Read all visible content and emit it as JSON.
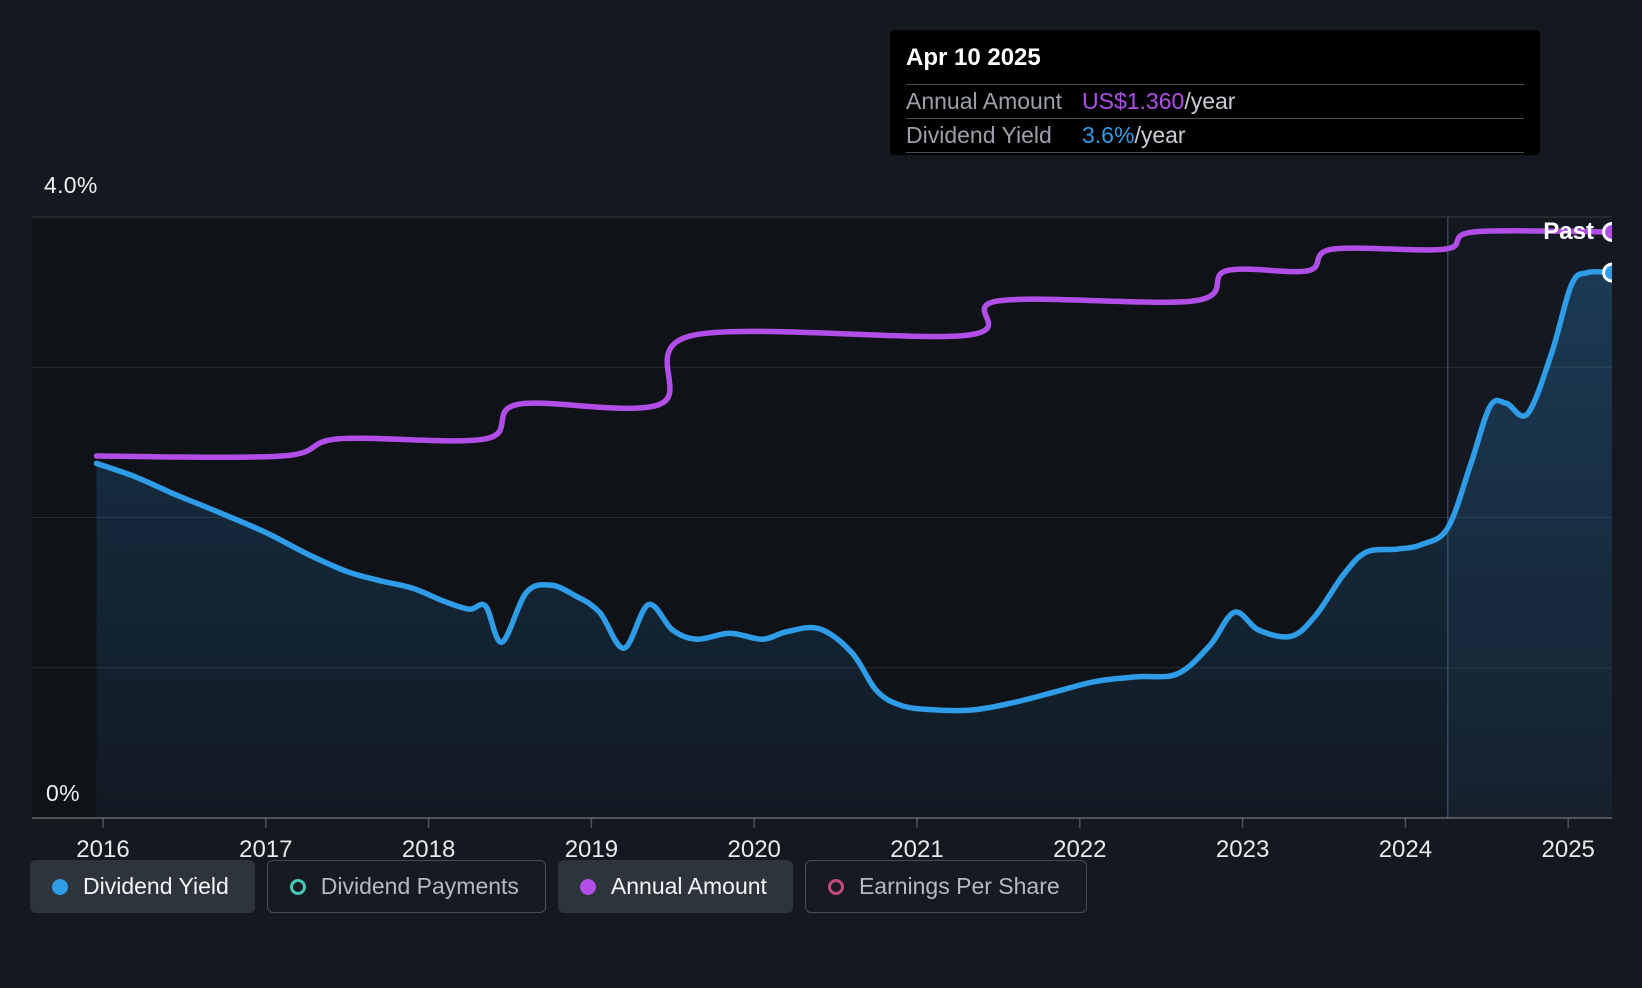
{
  "tooltip": {
    "date": "Apr 10 2025",
    "rows": [
      {
        "label": "Annual Amount",
        "value": "US$1.360",
        "suffix": "/year",
        "color_key": "purple"
      },
      {
        "label": "Dividend Yield",
        "value": "3.6%",
        "suffix": "/year",
        "color_key": "blue"
      }
    ]
  },
  "past_label": "Past",
  "y_axis": {
    "top_label": "4.0%",
    "bottom_label": "0%",
    "min": 0,
    "max": 4
  },
  "legend": {
    "items": [
      {
        "label": "Dividend Yield",
        "style": "filled",
        "marker": "filled-dot",
        "color_key": "blue"
      },
      {
        "label": "Dividend Payments",
        "style": "outline",
        "marker": "ring-dot",
        "color_key": "teal"
      },
      {
        "label": "Annual Amount",
        "style": "filled",
        "marker": "filled-dot",
        "color_key": "purple"
      },
      {
        "label": "Earnings Per Share",
        "style": "outline",
        "marker": "ring-dot",
        "color_key": "pink"
      }
    ]
  },
  "colors": {
    "blue": "#2f9ce8",
    "purple": "#b14ee8",
    "teal": "#45c8b5",
    "pink": "#c2487e",
    "area_fill_top": "rgba(43,130,200,0.30)",
    "area_fill_bottom": "rgba(43,130,200,0.07)",
    "page_bg": "#15181e",
    "plot_bg": "#0f1216",
    "gridline": "rgba(255,255,255,0.10)",
    "axis_line": "rgba(255,255,255,0.25)",
    "past_divider": "rgba(140,180,220,0.30)",
    "past_overlay": "rgba(100,160,220,0.06)"
  },
  "chart_data": {
    "type": "line",
    "title": "Dividend history and yield",
    "x_ticks": [
      2016,
      2017,
      2018,
      2019,
      2020,
      2021,
      2022,
      2023,
      2024,
      2025
    ],
    "y_axis_percent": {
      "min": 0,
      "max": 4,
      "gridlines_percent": [
        4,
        3,
        2,
        1,
        0
      ]
    },
    "past_region": {
      "start_year": 2024.26,
      "end_year": 2025.27,
      "label": "Past"
    },
    "legend_position": "bottom",
    "series": [
      {
        "name": "Dividend Yield",
        "unit": "%",
        "color_key": "blue",
        "end_marker": true,
        "area": true,
        "points": [
          [
            2015.96,
            2.36
          ],
          [
            2016.2,
            2.27
          ],
          [
            2016.45,
            2.15
          ],
          [
            2016.7,
            2.04
          ],
          [
            2017.0,
            1.9
          ],
          [
            2017.25,
            1.76
          ],
          [
            2017.5,
            1.64
          ],
          [
            2017.7,
            1.58
          ],
          [
            2017.9,
            1.53
          ],
          [
            2018.1,
            1.44
          ],
          [
            2018.25,
            1.39
          ],
          [
            2018.35,
            1.41
          ],
          [
            2018.45,
            1.17
          ],
          [
            2018.6,
            1.5
          ],
          [
            2018.75,
            1.55
          ],
          [
            2018.9,
            1.48
          ],
          [
            2019.05,
            1.37
          ],
          [
            2019.2,
            1.13
          ],
          [
            2019.35,
            1.42
          ],
          [
            2019.5,
            1.25
          ],
          [
            2019.65,
            1.19
          ],
          [
            2019.85,
            1.23
          ],
          [
            2020.05,
            1.19
          ],
          [
            2020.2,
            1.24
          ],
          [
            2020.4,
            1.26
          ],
          [
            2020.6,
            1.1
          ],
          [
            2020.75,
            0.85
          ],
          [
            2020.9,
            0.75
          ],
          [
            2021.1,
            0.72
          ],
          [
            2021.35,
            0.72
          ],
          [
            2021.6,
            0.77
          ],
          [
            2021.85,
            0.84
          ],
          [
            2022.1,
            0.91
          ],
          [
            2022.35,
            0.94
          ],
          [
            2022.6,
            0.96
          ],
          [
            2022.8,
            1.15
          ],
          [
            2022.95,
            1.37
          ],
          [
            2023.1,
            1.25
          ],
          [
            2023.3,
            1.21
          ],
          [
            2023.45,
            1.35
          ],
          [
            2023.62,
            1.62
          ],
          [
            2023.76,
            1.77
          ],
          [
            2023.95,
            1.79
          ],
          [
            2024.1,
            1.82
          ],
          [
            2024.26,
            1.93
          ],
          [
            2024.4,
            2.35
          ],
          [
            2024.52,
            2.74
          ],
          [
            2024.62,
            2.76
          ],
          [
            2024.75,
            2.69
          ],
          [
            2024.9,
            3.1
          ],
          [
            2025.02,
            3.55
          ],
          [
            2025.12,
            3.63
          ],
          [
            2025.27,
            3.63
          ]
        ]
      },
      {
        "name": "Annual Amount",
        "unit": "US$/year",
        "color_key": "purple",
        "end_marker": true,
        "area": false,
        "points": [
          [
            2015.96,
            0.84
          ],
          [
            2017.1,
            0.84
          ],
          [
            2017.45,
            0.88
          ],
          [
            2018.35,
            0.88
          ],
          [
            2018.55,
            0.96
          ],
          [
            2019.42,
            0.96
          ],
          [
            2019.62,
            1.12
          ],
          [
            2021.3,
            1.12
          ],
          [
            2021.5,
            1.2
          ],
          [
            2022.7,
            1.2
          ],
          [
            2022.9,
            1.27
          ],
          [
            2023.4,
            1.27
          ],
          [
            2023.55,
            1.32
          ],
          [
            2024.24,
            1.32
          ],
          [
            2024.42,
            1.36
          ],
          [
            2025.27,
            1.36
          ]
        ]
      }
    ]
  }
}
